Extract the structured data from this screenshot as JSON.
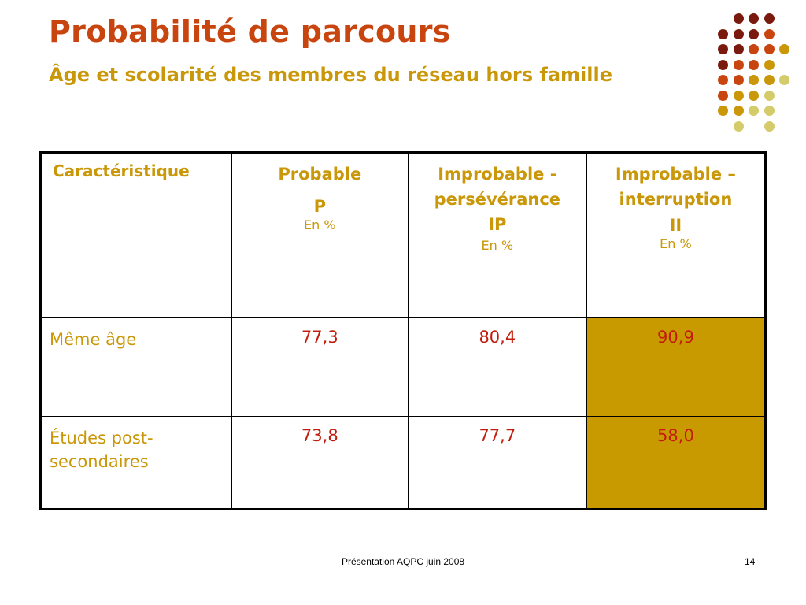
{
  "slide": {
    "title": "Probabilité de parcours",
    "subtitle": "Âge et scolarité des membres du réseau hors famille"
  },
  "colors": {
    "title": "#c9450f",
    "accent": "#c99708",
    "value_text": "#c21d0c",
    "highlight": "#c99a00"
  },
  "decor": {
    "dot_colors": [
      "#7a1a0e",
      "#c9450f",
      "#c99708",
      "#d4cc6a"
    ]
  },
  "table": {
    "header": {
      "col0": "Caractéristique",
      "col1": {
        "line1": "Probable",
        "code": "P",
        "unit": "En %"
      },
      "col2": {
        "line1": "Improbable -",
        "line2": "persévérance",
        "code": "IP",
        "unit": "En %"
      },
      "col3": {
        "line1": "Improbable –",
        "line2": "interruption",
        "code": "II",
        "unit": "En %"
      }
    },
    "rows": [
      {
        "label": "Même âge",
        "p": "77,3",
        "ip": "80,4",
        "ii": "90,9"
      },
      {
        "label_line1": "Études post-",
        "label_line2": "secondaires",
        "p": "73,8",
        "ip": "77,7",
        "ii": "58,0"
      }
    ]
  },
  "footer": {
    "text": "Présentation AQPC juin 2008",
    "page": "14"
  }
}
